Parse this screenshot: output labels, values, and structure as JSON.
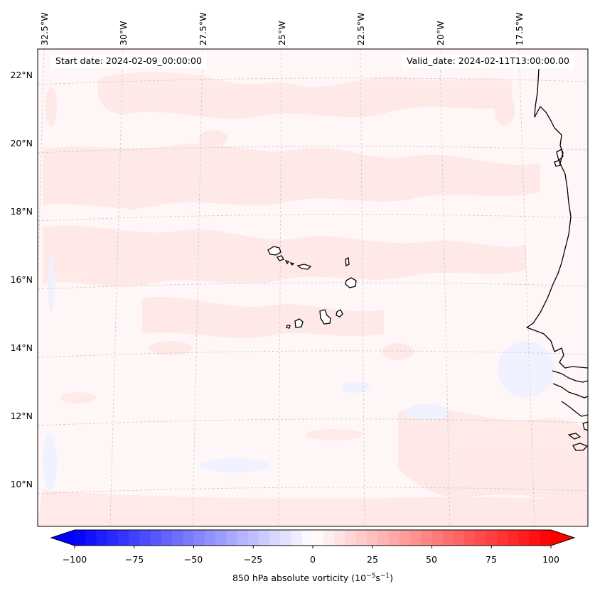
{
  "map": {
    "header": {
      "start_date": "Start date: 2024-02-09_00:00:00",
      "valid_date": "Valid_date: 2024-02-11T13:00:00.00"
    },
    "longitude_labels": [
      "32.5°W",
      "30°W",
      "27.5°W",
      "25°W",
      "22.5°W",
      "20°W",
      "17.5°W"
    ],
    "latitude_labels": [
      "22°N",
      "20°N",
      "18°N",
      "16°N",
      "14°N",
      "12°N",
      "10°N"
    ],
    "features": [
      "Cape Verde islands",
      "West African coastline"
    ]
  },
  "colorbar": {
    "label_prefix": "850 hPa absolute vorticity (10",
    "label_exp1": "−5",
    "label_mid": "s",
    "label_exp2": "−1",
    "label_suffix": ")",
    "ticks": [
      "−100",
      "−75",
      "−50",
      "−25",
      "0",
      "25",
      "50",
      "75",
      "100"
    ],
    "min": -100,
    "max": 100,
    "levels": 44,
    "neg_color": "#0000ff",
    "zero_color": "#ffffff",
    "pos_color": "#ff0000"
  },
  "colors": {
    "background_field": "#fff7f7",
    "light_positive": "#ffe6e6",
    "light_negative": "#f2f5ff",
    "coast": "#000000",
    "grid": "#c8c8c8"
  }
}
